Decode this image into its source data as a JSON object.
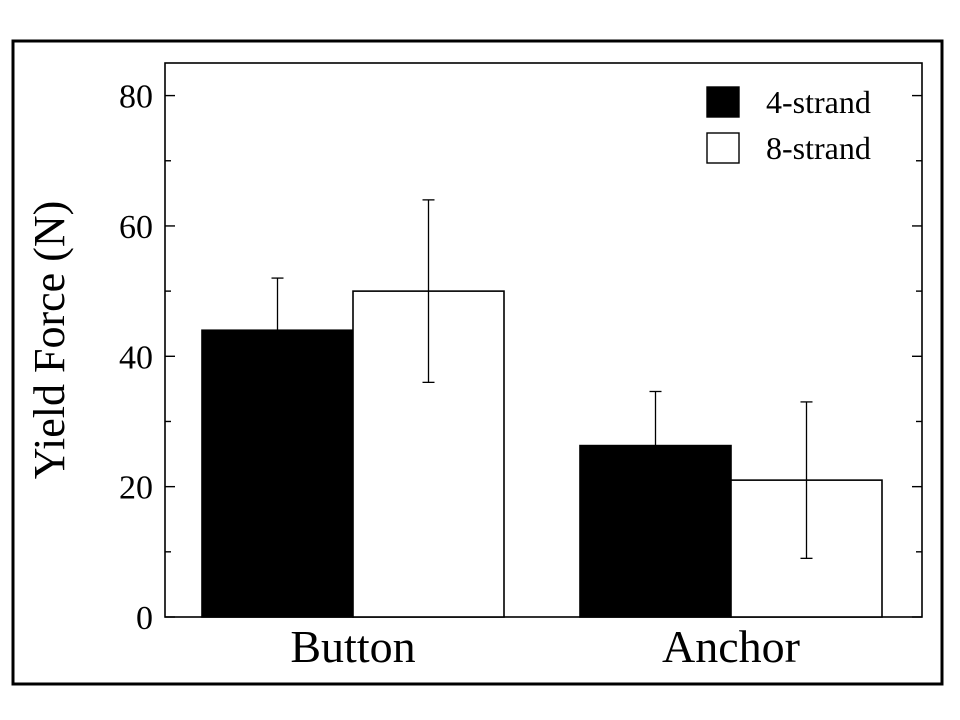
{
  "chart_data": {
    "type": "bar",
    "categories": [
      "Button",
      "Anchor"
    ],
    "series": [
      {
        "name": "4-strand",
        "values": [
          44,
          26.3
        ],
        "errors": [
          8,
          8.3
        ],
        "color": "#000000"
      },
      {
        "name": "8-strand",
        "values": [
          50,
          21
        ],
        "errors": [
          14,
          12
        ],
        "color": "#ffffff"
      }
    ],
    "ylabel": "Yield Force (N)",
    "xlabel": "",
    "ylim": [
      0,
      85
    ],
    "yticks": [
      0,
      20,
      40,
      60,
      80
    ],
    "legend_position": "top-right",
    "grid": false
  }
}
